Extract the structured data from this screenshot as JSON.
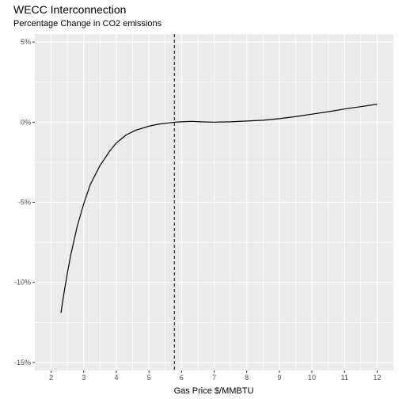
{
  "chart_data": {
    "type": "line",
    "title": "WECC Interconnection",
    "subtitle": "Percentage Change in CO2 emissions",
    "xlabel": "Gas Price $/MMBTU",
    "ylabel": "",
    "xlim": [
      1.5,
      12.5
    ],
    "ylim": [
      -15.5,
      5.5
    ],
    "x_ticks": [
      2,
      3,
      4,
      5,
      6,
      7,
      8,
      9,
      10,
      11,
      12
    ],
    "y_ticks": [
      -15,
      -10,
      -5,
      0,
      5
    ],
    "y_tick_labels": [
      "-15%",
      "-10%",
      "-5%",
      "0%",
      "5%"
    ],
    "vline_x": 5.78,
    "grid": true,
    "legend": "none",
    "colors": {
      "panel": "#ebebeb",
      "grid": "#ffffff",
      "line": "#000000"
    },
    "series": [
      {
        "x": [
          2.3,
          2.4,
          2.5,
          2.6,
          2.8,
          3.0,
          3.2,
          3.5,
          3.8,
          4.0,
          4.3,
          4.6,
          5.0,
          5.3,
          5.6,
          5.8,
          6.0,
          6.3,
          6.6,
          7.0,
          7.5,
          8.0,
          8.5,
          9.0,
          9.5,
          10.0,
          10.5,
          11.0,
          11.5,
          12.0
        ],
        "y": [
          -11.9,
          -10.6,
          -9.4,
          -8.3,
          -6.5,
          -5.1,
          -3.9,
          -2.7,
          -1.8,
          -1.3,
          -0.8,
          -0.5,
          -0.25,
          -0.12,
          -0.05,
          0.0,
          0.02,
          0.05,
          0.02,
          0.0,
          0.02,
          0.07,
          0.12,
          0.22,
          0.35,
          0.5,
          0.65,
          0.82,
          0.97,
          1.12
        ]
      }
    ]
  }
}
